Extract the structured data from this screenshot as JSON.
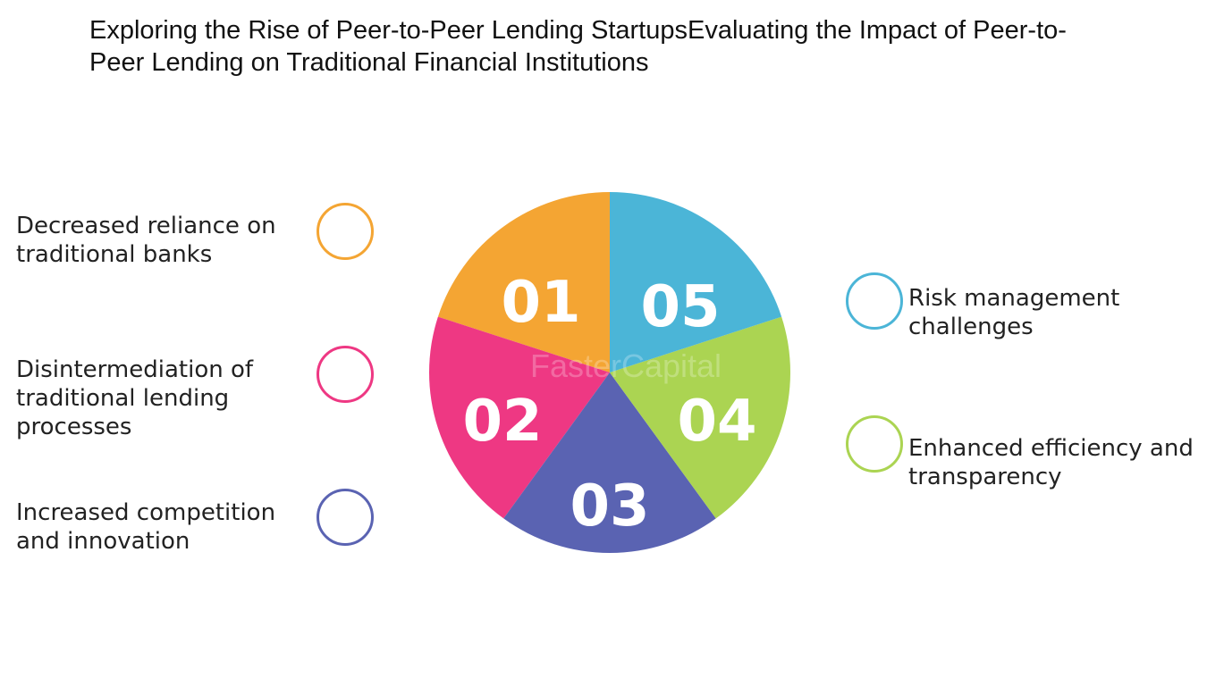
{
  "title": "Exploring the Rise of Peer-to-Peer Lending StartupsEvaluating the Impact of Peer-to-Peer Lending on Traditional Financial Institutions",
  "watermark": "FasterCapital",
  "segments": [
    {
      "number": "01",
      "color": "#F4A533",
      "label": "Decreased reliance on traditional banks",
      "side": "left"
    },
    {
      "number": "02",
      "color": "#EE3883",
      "label": "Disintermediation of traditional lending processes",
      "side": "left"
    },
    {
      "number": "03",
      "color": "#5A63B2",
      "label": "Increased competition and innovation",
      "side": "left"
    },
    {
      "number": "04",
      "color": "#ABD452",
      "label": "Enhanced efficiency and transparency",
      "side": "right"
    },
    {
      "number": "05",
      "color": "#4BB5D7",
      "label": "Risk management challenges",
      "side": "right"
    }
  ]
}
